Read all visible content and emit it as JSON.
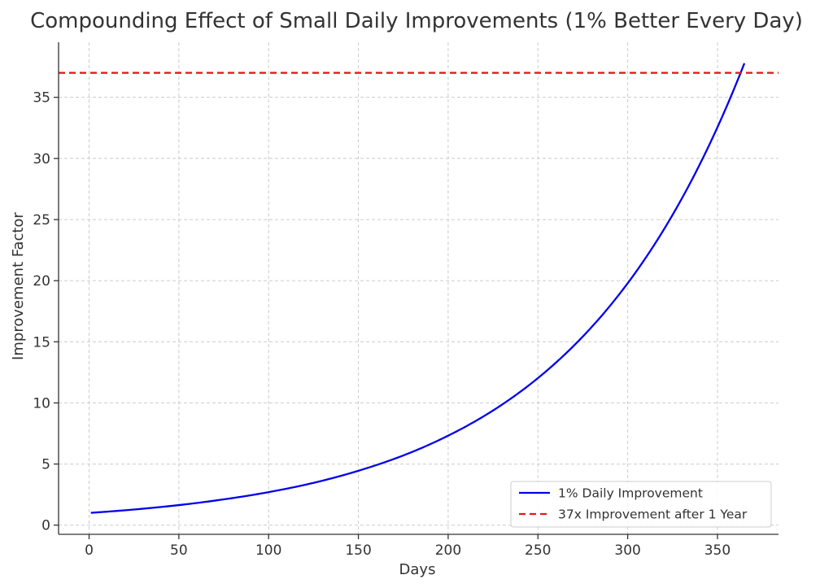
{
  "chart_data": {
    "type": "line",
    "title": "Compounding Effect of Small Daily Improvements (1% Better Every Day)",
    "xlabel": "Days",
    "ylabel": "Improvement Factor",
    "xlim": [
      -17,
      384
    ],
    "ylim": [
      -0.75,
      39.5
    ],
    "xticks": [
      0,
      50,
      100,
      150,
      200,
      250,
      300,
      350
    ],
    "yticks": [
      0,
      5,
      10,
      15,
      20,
      25,
      30,
      35
    ],
    "grid": true,
    "legend_position": "lower-right",
    "series": [
      {
        "name": "1% Daily Improvement",
        "color": "#0000ee",
        "style": "solid",
        "x": [
          1,
          25,
          50,
          75,
          100,
          125,
          150,
          175,
          200,
          225,
          250,
          275,
          300,
          325,
          350,
          365
        ],
        "y": [
          1.01,
          1.28,
          1.64,
          2.11,
          2.7,
          3.46,
          4.45,
          5.7,
          7.32,
          9.38,
          12.03,
          15.43,
          19.79,
          25.38,
          32.55,
          37.78
        ]
      },
      {
        "name": "37x Improvement after 1 Year",
        "color": "#e31a1c",
        "style": "dashed",
        "x": [
          -17,
          384
        ],
        "y": [
          37,
          37
        ]
      }
    ]
  }
}
